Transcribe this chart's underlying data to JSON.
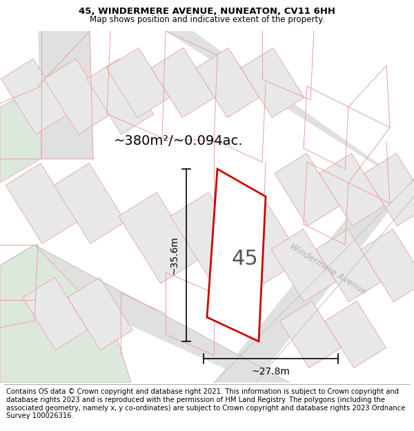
{
  "title_line1": "45, WINDERMERE AVENUE, NUNEATON, CV11 6HH",
  "title_line2": "Map shows position and indicative extent of the property.",
  "area_text": "~380m²/~0.094ac.",
  "width_label": "~27.8m",
  "height_label": "~35.6m",
  "house_number": "45",
  "street_label": "Windermere Avenue",
  "footer_text": "Contains OS data © Crown copyright and database right 2021. This information is subject to Crown copyright and database rights 2023 and is reproduced with the permission of HM Land Registry. The polygons (including the associated geometry, namely x, y co-ordinates) are subject to Crown copyright and database rights 2023 Ordnance Survey 100026316.",
  "plot_outline_color": "#cc0000",
  "neighbor_line_color": "#e8a0a0",
  "road_fill_color": "#e0e0e0",
  "block_fill_color": "#e8e8e8",
  "green_fill_color": "#dde8dd",
  "title_fontsize": 9.5,
  "subtitle_fontsize": 8.5,
  "footer_fontsize": 7.2,
  "label_fontsize": 10,
  "street_label_fontsize": 9,
  "house_num_fontsize": 22,
  "area_fontsize": 14
}
